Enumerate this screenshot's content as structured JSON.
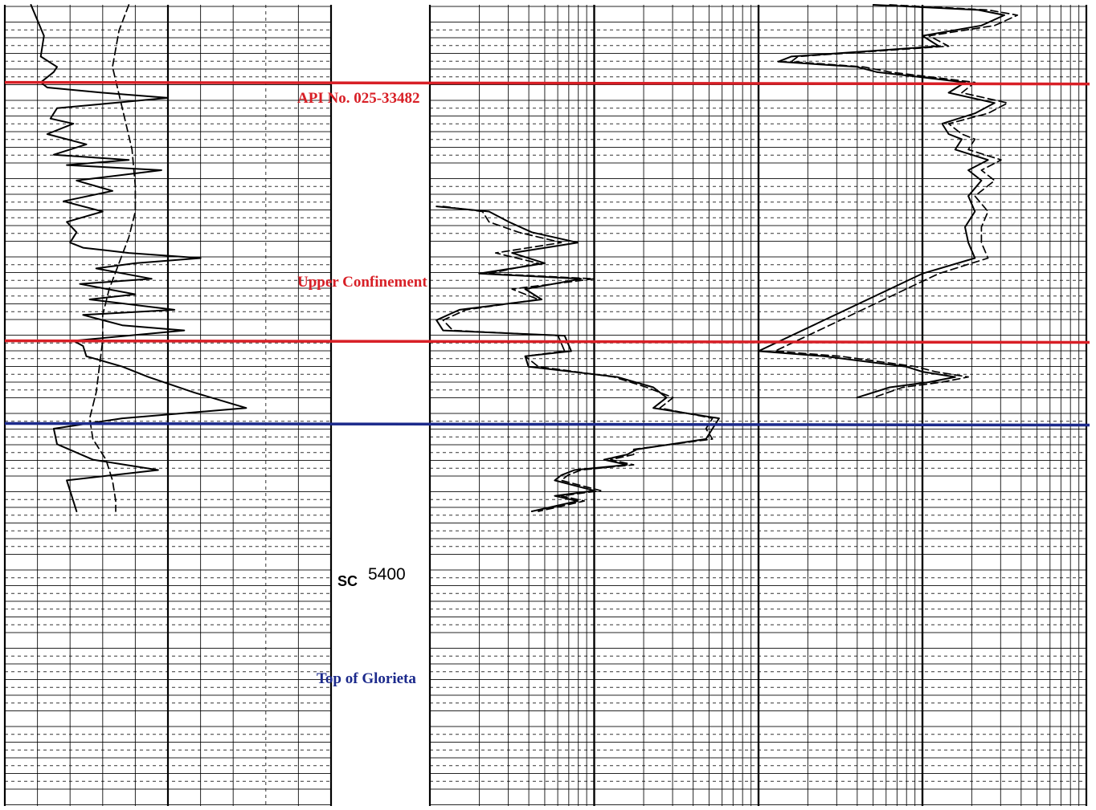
{
  "chart_data": {
    "type": "line",
    "title": "API No. 025-33482",
    "depth_reference": {
      "code": "SC",
      "depth": "5400"
    },
    "depth_range": [
      5320,
      5475
    ],
    "ylabel": "",
    "xlabel": "",
    "grid": true,
    "markers": [
      {
        "name": "top-boundary",
        "label": "",
        "depth": 5335,
        "color": "#d81f26"
      },
      {
        "name": "upper-confinement",
        "label": "Upper Confinement",
        "depth": 5385,
        "color": "#d81f26"
      },
      {
        "name": "top-of-glorieta",
        "label": "Top of Glorieta",
        "depth": 5401,
        "color": "#1c2a8c"
      }
    ],
    "annotations": [
      {
        "name": "api-number",
        "text": "API No. 025-33482",
        "depth": 5332,
        "color": "#d81f26"
      },
      {
        "name": "upper-confinement-label",
        "text": "Upper Confinement",
        "depth": 5355,
        "color": "#d81f26"
      },
      {
        "name": "top-of-glorieta-label",
        "text": "Top of Glorieta",
        "depth": 5404,
        "color": "#1c2a8c"
      }
    ],
    "tracks": [
      {
        "name": "track-1",
        "xlim": [
          0,
          10
        ],
        "series": [
          {
            "name": "",
            "style": "solid",
            "x": [
              0.8,
              1.0,
              1.2,
              1.1,
              1.6,
              1.5,
              1.1,
              1.3,
              3.0,
              5.0,
              1.6,
              1.4,
              2.1,
              1.3,
              2.5,
              1.5,
              3.8,
              1.9,
              4.8,
              2.2,
              3.3,
              1.8,
              3.0,
              1.9,
              2.2,
              2.0,
              2.4,
              3.8,
              6.0,
              4.0,
              2.8,
              4.5,
              2.3,
              4.0,
              2.6,
              5.2,
              2.4,
              3.6,
              5.5,
              2.1,
              2.4,
              2.5,
              3.6,
              4.4,
              5.8,
              7.4,
              3.6,
              1.5,
              1.6,
              2.7,
              4.7,
              1.9,
              2.0,
              2.2
            ],
            "y": [
              5320,
              5323,
              5326,
              5330,
              5332,
              5333,
              5335,
              5336,
              5337,
              5338,
              5340,
              5342,
              5343,
              5345,
              5347,
              5349,
              5350,
              5351,
              5352,
              5354,
              5356,
              5358,
              5360,
              5362,
              5364,
              5366,
              5367,
              5368,
              5369,
              5370,
              5371,
              5373,
              5374,
              5376,
              5377,
              5379,
              5380,
              5382,
              5383,
              5385,
              5386,
              5388,
              5390,
              5392,
              5395,
              5398,
              5400,
              5402,
              5405,
              5408,
              5410,
              5412,
              5414,
              5418
            ]
          },
          {
            "name": "",
            "style": "dashed",
            "x": [
              3.8,
              3.5,
              3.3,
              3.6,
              3.9,
              4.0,
              4.0,
              3.8,
              3.5,
              3.2,
              3.0,
              3.0,
              2.9,
              2.8,
              2.6,
              2.7,
              3.1,
              3.3,
              3.4,
              3.4
            ],
            "y": [
              5320,
              5325,
              5332,
              5340,
              5348,
              5355,
              5360,
              5365,
              5370,
              5375,
              5380,
              5385,
              5390,
              5395,
              5400,
              5404,
              5408,
              5412,
              5416,
              5418
            ]
          }
        ]
      },
      {
        "name": "track-2",
        "xlim": [
          0,
          1
        ],
        "series": [
          {
            "name": "",
            "style": "solid",
            "x": [
              0.02,
              0.18,
              0.24,
              0.31,
              0.45,
              0.25,
              0.35,
              0.15,
              0.46,
              0.29,
              0.34,
              0.09,
              0.02,
              0.04,
              0.41,
              0.43,
              0.29,
              0.3,
              0.57,
              0.68,
              0.72,
              0.68,
              0.88,
              0.86,
              0.84,
              0.63,
              0.6,
              0.53,
              0.6,
              0.44,
              0.4,
              0.38,
              0.5,
              0.38,
              0.45,
              0.31
            ],
            "y": [
              5359,
              5360,
              5362,
              5364,
              5366,
              5368,
              5370,
              5372,
              5373,
              5375,
              5377,
              5379,
              5381,
              5383,
              5384,
              5387,
              5388,
              5390,
              5392,
              5394,
              5396,
              5398,
              5400,
              5402,
              5404,
              5406,
              5407,
              5408,
              5409,
              5410,
              5411,
              5412,
              5414,
              5415,
              5416,
              5418
            ]
          },
          {
            "name": "",
            "style": "dashed",
            "x": [
              0.04,
              0.16,
              0.18,
              0.27,
              0.4,
              0.2,
              0.33,
              0.18,
              0.5,
              0.25,
              0.33,
              0.11,
              0.04,
              0.07,
              0.39,
              0.41,
              0.29,
              0.33,
              0.56,
              0.66,
              0.74,
              0.7,
              0.86,
              0.84,
              0.86,
              0.62,
              0.62,
              0.55,
              0.62,
              0.46,
              0.42,
              0.4,
              0.52,
              0.4,
              0.47,
              0.33
            ],
            "y": [
              5359,
              5360,
              5362,
              5364,
              5366,
              5368,
              5370,
              5372,
              5373,
              5375,
              5377,
              5379,
              5381,
              5383,
              5384,
              5387,
              5388,
              5390,
              5392,
              5394,
              5396,
              5398,
              5400,
              5402,
              5404,
              5406,
              5407,
              5408,
              5409,
              5410,
              5411,
              5412,
              5414,
              5415,
              5416,
              5418
            ]
          }
        ]
      },
      {
        "name": "track-3",
        "xlim": [
          0,
          1
        ],
        "series": [
          {
            "name": "",
            "style": "solid",
            "x": [
              0.35,
              0.67,
              0.75,
              0.68,
              0.5,
              0.55,
              0.1,
              0.06,
              0.3,
              0.36,
              0.63,
              0.58,
              0.72,
              0.66,
              0.56,
              0.58,
              0.62,
              0.6,
              0.7,
              0.64,
              0.68,
              0.64,
              0.66,
              0.63,
              0.64,
              0.66,
              0.5,
              0.0,
              0.2,
              0.45,
              0.5,
              0.6,
              0.52,
              0.4,
              0.3
            ],
            "y": [
              5320,
              5321,
              5322,
              5324,
              5326,
              5328,
              5330,
              5331,
              5332,
              5333,
              5335,
              5337,
              5339,
              5341,
              5343,
              5345,
              5346,
              5348,
              5350,
              5352,
              5354,
              5357,
              5360,
              5363,
              5366,
              5369,
              5372,
              5387,
              5388,
              5390,
              5391,
              5392,
              5393,
              5394,
              5396
            ]
          },
          {
            "name": "",
            "style": "dashed",
            "x": [
              0.4,
              0.7,
              0.79,
              0.72,
              0.52,
              0.58,
              0.12,
              0.1,
              0.32,
              0.4,
              0.66,
              0.62,
              0.76,
              0.7,
              0.58,
              0.62,
              0.66,
              0.64,
              0.74,
              0.68,
              0.72,
              0.66,
              0.7,
              0.68,
              0.68,
              0.7,
              0.55,
              0.05,
              0.25,
              0.48,
              0.54,
              0.64,
              0.56,
              0.44,
              0.35
            ],
            "y": [
              5320,
              5321,
              5322,
              5324,
              5326,
              5328,
              5330,
              5331,
              5332,
              5333,
              5335,
              5337,
              5339,
              5341,
              5343,
              5345,
              5346,
              5348,
              5350,
              5352,
              5354,
              5357,
              5360,
              5363,
              5366,
              5369,
              5372,
              5387,
              5388,
              5390,
              5391,
              5392,
              5393,
              5394,
              5396
            ]
          }
        ]
      }
    ]
  }
}
